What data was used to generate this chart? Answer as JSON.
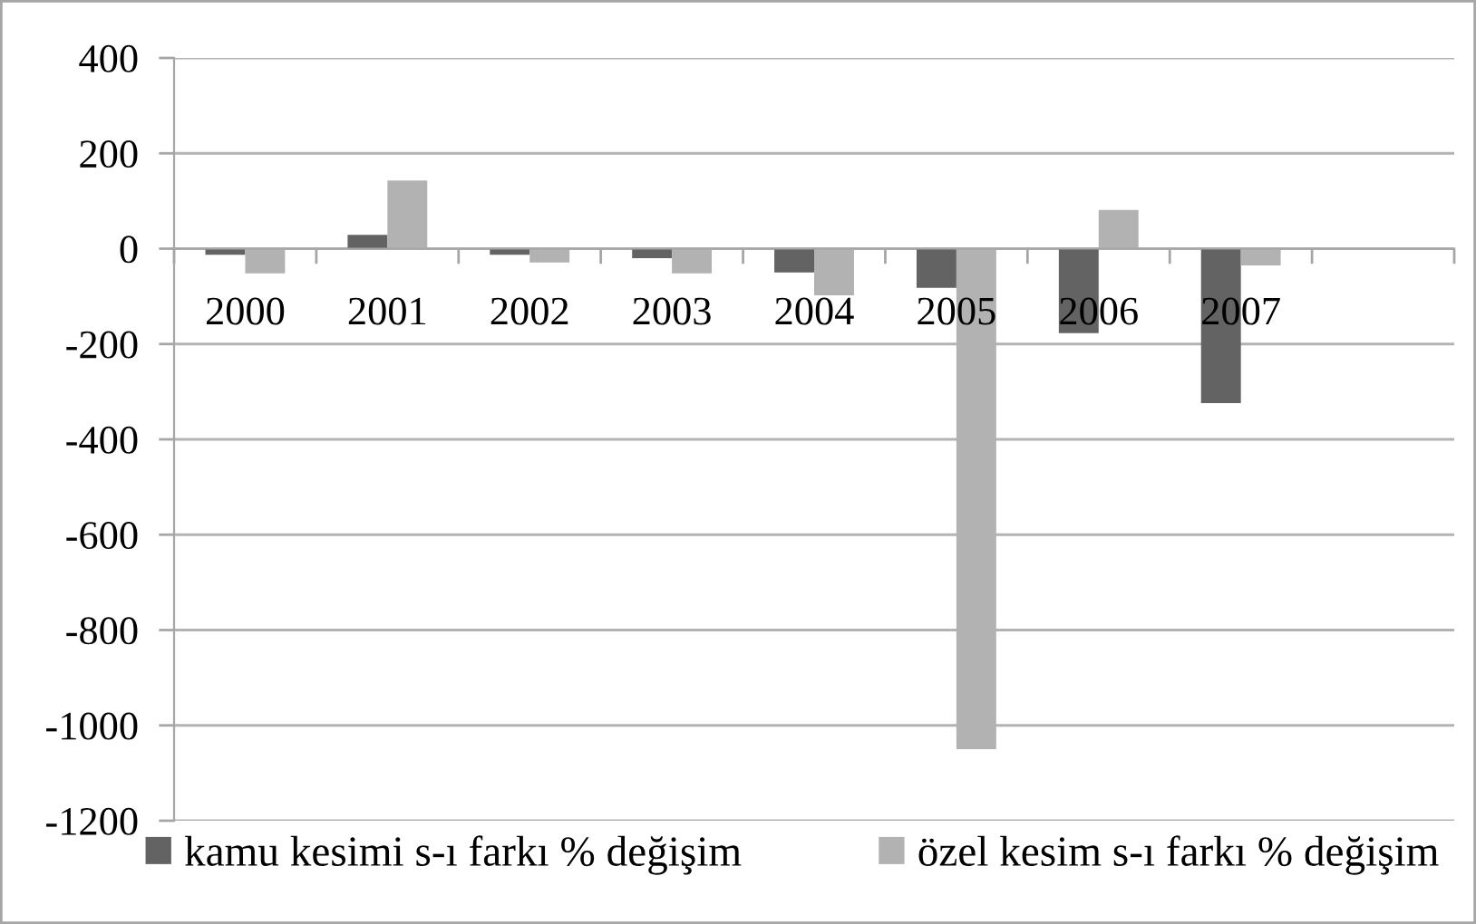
{
  "chart_data": {
    "type": "bar",
    "categories": [
      "2000",
      "2001",
      "2002",
      "2003",
      "2004",
      "2005",
      "2006",
      "2007",
      null
    ],
    "series": [
      {
        "name": "kamu kesimi s-ı farkı % değişim",
        "color": "#636363",
        "values": [
          -13,
          29,
          -13,
          -20,
          -50,
          -82,
          -177,
          -324,
          null
        ]
      },
      {
        "name": "özel kesim s-ı farkı % değişim",
        "color": "#b2b2b2",
        "values": [
          -52,
          143,
          -29,
          -52,
          -98,
          -1050,
          81,
          -35,
          null
        ]
      }
    ],
    "ylim": [
      -1200,
      400
    ],
    "yticks": [
      -1200,
      -1000,
      -800,
      -600,
      -400,
      -200,
      0,
      200,
      400
    ],
    "grid": "y",
    "legend": "bottom"
  }
}
